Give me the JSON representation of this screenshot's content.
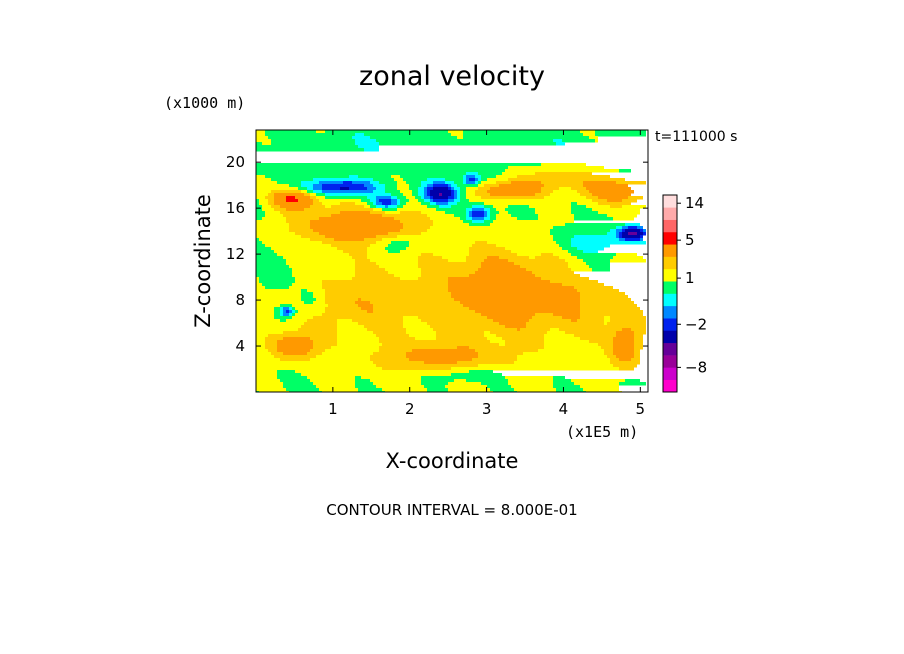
{
  "chart_data": {
    "type": "heatmap",
    "title": "zonal velocity",
    "xlabel": "X-coordinate",
    "ylabel": "Z-coordinate",
    "x_unit": "(x1E5 m)",
    "y_unit": "(x1000 m)",
    "time_label": "t=111000 s",
    "footer": "CONTOUR INTERVAL = 8.000E-01",
    "xlim": [
      0,
      5.1
    ],
    "ylim": [
      0,
      22.8
    ],
    "x_ticks": [
      "1",
      "2",
      "3",
      "4",
      "5"
    ],
    "x_tick_values": [
      1,
      2,
      3,
      4,
      5
    ],
    "y_ticks": [
      "4",
      "8",
      "12",
      "16",
      "20"
    ],
    "y_tick_values": [
      4,
      8,
      12,
      16,
      20
    ],
    "colorbar": {
      "label_texts": [
        "14",
        "5",
        "1",
        "−2",
        "−8"
      ],
      "label_values": [
        14,
        5,
        1,
        -2,
        -8
      ],
      "bands": [
        {
          "color": "#ff00cc",
          "lo": -16,
          "hi": -10
        },
        {
          "color": "#cc00cc",
          "lo": -10,
          "hi": -8
        },
        {
          "color": "#990099",
          "lo": -8,
          "hi": -6
        },
        {
          "color": "#660099",
          "lo": -6,
          "hi": -4
        },
        {
          "color": "#0000aa",
          "lo": -4,
          "hi": -2.4
        },
        {
          "color": "#0022ee",
          "lo": -2.4,
          "hi": -1.6
        },
        {
          "color": "#0088ff",
          "lo": -1.6,
          "hi": -0.8
        },
        {
          "color": "#00ffff",
          "lo": -0.8,
          "hi": 0
        },
        {
          "color": "#00ff66",
          "lo": 0,
          "hi": 0.8
        },
        {
          "color": "#ffff00",
          "lo": 0.8,
          "hi": 1.6
        },
        {
          "color": "#ffcc00",
          "lo": 1.6,
          "hi": 2.4
        },
        {
          "color": "#ff9900",
          "lo": 2.4,
          "hi": 4
        },
        {
          "color": "#ff0000",
          "lo": 4,
          "hi": 7
        },
        {
          "color": "#ff6666",
          "lo": 7,
          "hi": 10
        },
        {
          "color": "#ffaaaa",
          "lo": 10,
          "hi": 13
        },
        {
          "color": "#ffdddd",
          "lo": 13,
          "hi": 16
        }
      ]
    },
    "field_features": [
      {
        "x": 2.6,
        "z": 7,
        "sx": 2.6,
        "sz": 8,
        "v": 1.0
      },
      {
        "x": 1.2,
        "z": 8,
        "sx": 0.9,
        "sz": 2.5,
        "v": 1.0
      },
      {
        "x": 4.2,
        "z": 8,
        "sx": 0.8,
        "sz": 3,
        "v": 1.0
      },
      {
        "x": 3.2,
        "z": 9,
        "sx": 0.7,
        "sz": 3,
        "v": 2.0
      },
      {
        "x": 1.3,
        "z": 14.5,
        "sx": 0.8,
        "sz": 1.6,
        "v": 2.8
      },
      {
        "x": 0.5,
        "z": 16.8,
        "sx": 0.3,
        "sz": 0.9,
        "v": 3.5
      },
      {
        "x": 0.5,
        "z": 4,
        "sx": 0.3,
        "sz": 1.2,
        "v": 2.5
      },
      {
        "x": 4.7,
        "z": 17.5,
        "sx": 0.5,
        "sz": 1.2,
        "v": 2.5
      },
      {
        "x": 3.9,
        "z": 18.5,
        "sx": 0.5,
        "sz": 1.0,
        "v": 1.5
      },
      {
        "x": 3.3,
        "z": 17.5,
        "sx": 0.35,
        "sz": 0.8,
        "v": 3.2
      },
      {
        "x": 4.8,
        "z": 4,
        "sx": 0.2,
        "sz": 2.0,
        "v": 2.5
      },
      {
        "x": 2.4,
        "z": 3,
        "sx": 0.8,
        "sz": 1.2,
        "v": 1.5
      },
      {
        "x": 1.1,
        "z": 17.8,
        "sx": 0.45,
        "sz": 0.7,
        "v": -3.5
      },
      {
        "x": 2.4,
        "z": 17.3,
        "sx": 0.22,
        "sz": 0.9,
        "v": -4.5
      },
      {
        "x": 1.7,
        "z": 16.5,
        "sx": 0.2,
        "sz": 0.6,
        "v": -3.0
      },
      {
        "x": 2.9,
        "z": 15.5,
        "sx": 0.15,
        "sz": 0.7,
        "v": -3.5
      },
      {
        "x": 2.8,
        "z": 18.5,
        "sx": 0.1,
        "sz": 0.5,
        "v": -3.0
      },
      {
        "x": 4.9,
        "z": 13.8,
        "sx": 0.18,
        "sz": 0.6,
        "v": -5.0
      },
      {
        "x": 0.4,
        "z": 7,
        "sx": 0.1,
        "sz": 0.5,
        "v": -3.0
      },
      {
        "x": 4.4,
        "z": 13,
        "sx": 0.5,
        "sz": 1.2,
        "v": -1.4
      },
      {
        "x": 1.9,
        "z": 13,
        "sx": 0.3,
        "sz": 0.8,
        "v": -1.2
      },
      {
        "x": 0.7,
        "z": 8,
        "sx": 0.2,
        "sz": 1.5,
        "v": -1.2
      },
      {
        "x": 2.7,
        "z": 1.5,
        "sx": 0.5,
        "sz": 0.8,
        "v": -1.0
      },
      {
        "x": 1.6,
        "z": 21.5,
        "sx": 0.8,
        "sz": 1.2,
        "v": -0.5
      },
      {
        "x": 3.6,
        "z": 21.5,
        "sx": 0.6,
        "sz": 1.0,
        "v": -0.5
      },
      {
        "x": 4.2,
        "z": 10.5,
        "sx": 0.5,
        "sz": 1.0,
        "v": -0.6
      },
      {
        "x": 0.3,
        "z": 10,
        "sx": 0.3,
        "sz": 2.0,
        "v": -0.6
      }
    ]
  }
}
